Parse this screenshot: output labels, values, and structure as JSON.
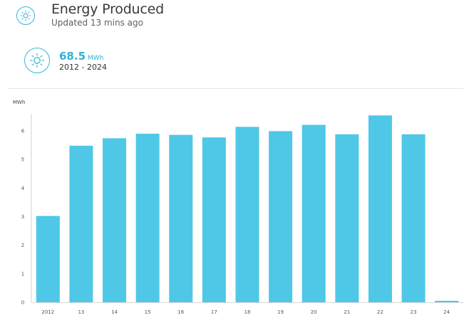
{
  "header": {
    "title": "Energy Produced",
    "subtitle": "Updated 13 mins ago",
    "icon": "sun-icon"
  },
  "summary": {
    "value": "68.5",
    "unit": "MWh",
    "range": "2012 - 2024",
    "icon": "sun-icon"
  },
  "colors": {
    "accent": "#37b7d6",
    "bar": "#4ec8e6",
    "value_text": "#2fb3d3"
  },
  "chart_data": {
    "type": "bar",
    "categories": [
      "2012",
      "13",
      "14",
      "15",
      "16",
      "17",
      "18",
      "19",
      "20",
      "21",
      "22",
      "23",
      "24"
    ],
    "values": [
      3.02,
      5.48,
      5.74,
      5.9,
      5.86,
      5.77,
      6.14,
      5.99,
      6.21,
      5.88,
      6.54,
      5.88,
      0.05
    ],
    "ylabel": "MWh",
    "yticks": [
      0,
      1,
      2,
      3,
      4,
      5,
      6
    ],
    "ylim": [
      0,
      6.6
    ],
    "grid": false,
    "legend": "none"
  }
}
